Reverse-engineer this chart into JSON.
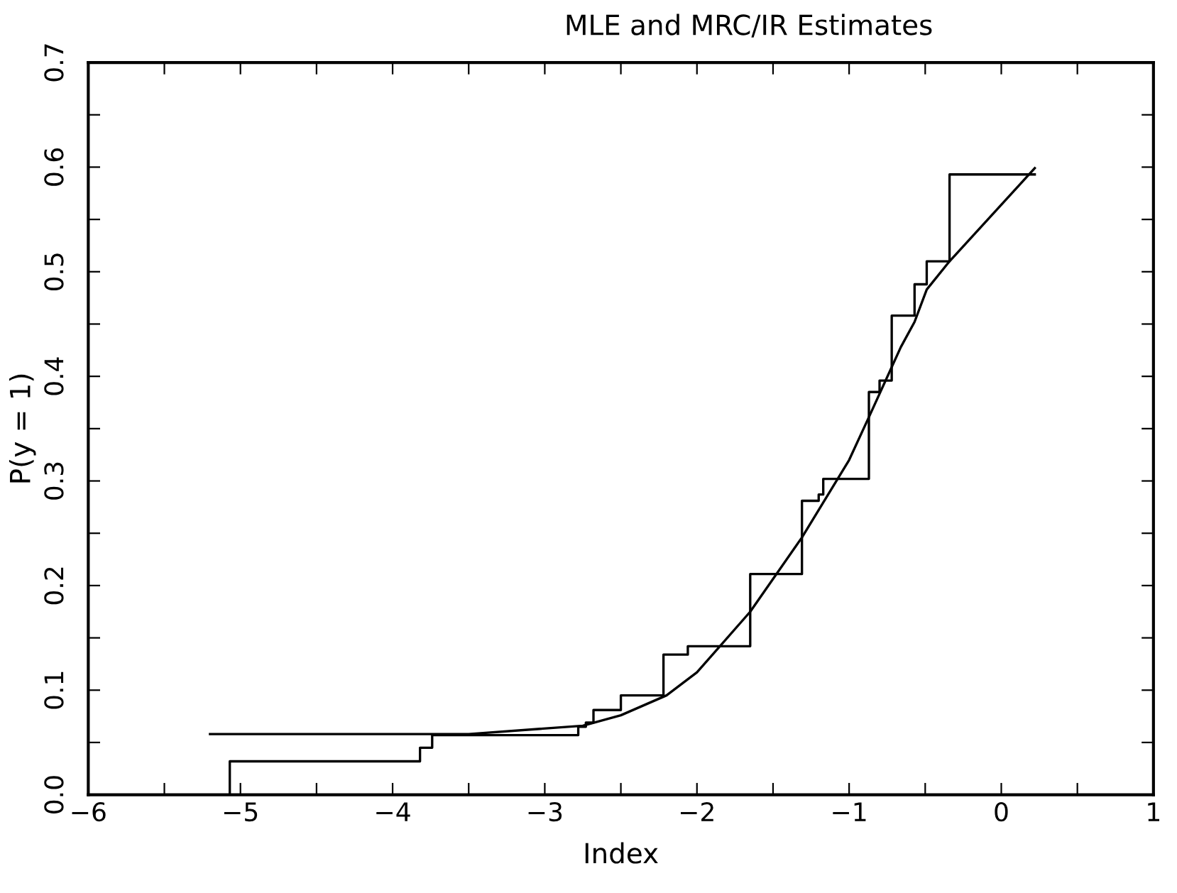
{
  "chart_data": {
    "type": "line",
    "title": "MLE and MRC/IR Estimates",
    "xlabel": "Index",
    "ylabel": "P(y = 1)",
    "series": [
      {
        "type": "step",
        "color": "#000000",
        "x": [
          -5.07,
          -5.07,
          -3.82,
          -3.74,
          -2.78,
          -2.73,
          -2.68,
          -2.5,
          -2.22,
          -2.06,
          -1.65,
          -1.31,
          -1.2,
          -1.17,
          -0.87,
          -0.8,
          -0.72,
          -0.57,
          -0.49,
          -0.34,
          0.22
        ],
        "values": [
          0.0,
          0.032,
          0.045,
          0.057,
          0.065,
          0.069,
          0.081,
          0.095,
          0.134,
          0.142,
          0.211,
          0.281,
          0.287,
          0.302,
          0.385,
          0.396,
          0.458,
          0.488,
          0.51,
          0.593,
          0.593
        ]
      },
      {
        "color": "#000000",
        "x": [
          -5.2,
          -3.5,
          -2.75,
          -2.5,
          -2.2,
          -2.0,
          -1.65,
          -1.31,
          -1.0,
          -0.87,
          -0.66,
          -0.57,
          -0.49,
          -0.34,
          0.22
        ],
        "values": [
          0.058,
          0.058,
          0.066,
          0.076,
          0.095,
          0.117,
          0.175,
          0.246,
          0.32,
          0.361,
          0.428,
          0.452,
          0.483,
          0.51,
          0.599
        ]
      }
    ],
    "xlim": [
      -6,
      1
    ],
    "ylim": [
      0,
      0.7
    ],
    "xticks": [
      {
        "value": -6,
        "label": "−6"
      },
      {
        "value": -5.5,
        "label": null
      },
      {
        "value": -5,
        "label": "−5"
      },
      {
        "value": -4.5,
        "label": null
      },
      {
        "value": -4,
        "label": "−4"
      },
      {
        "value": -3.5,
        "label": null
      },
      {
        "value": -3,
        "label": "−3"
      },
      {
        "value": -2.5,
        "label": null
      },
      {
        "value": -2,
        "label": "−2"
      },
      {
        "value": -1.5,
        "label": null
      },
      {
        "value": -1,
        "label": "−1"
      },
      {
        "value": -0.5,
        "label": null
      },
      0,
      {
        "value": 0.5,
        "label": null
      },
      1
    ],
    "yticks": [
      {
        "value": 0,
        "label": "0.0"
      },
      {
        "value": 0.05,
        "label": null
      },
      0.1,
      {
        "value": 0.15,
        "label": null
      },
      0.2,
      {
        "value": 0.25,
        "label": null
      },
      0.3,
      {
        "value": 0.35,
        "label": null
      },
      0.4,
      {
        "value": 0.45,
        "label": null
      },
      0.5,
      {
        "value": 0.55,
        "label": null
      },
      0.6,
      {
        "value": 0.65,
        "label": null
      },
      0.7
    ],
    "grid": false
  }
}
